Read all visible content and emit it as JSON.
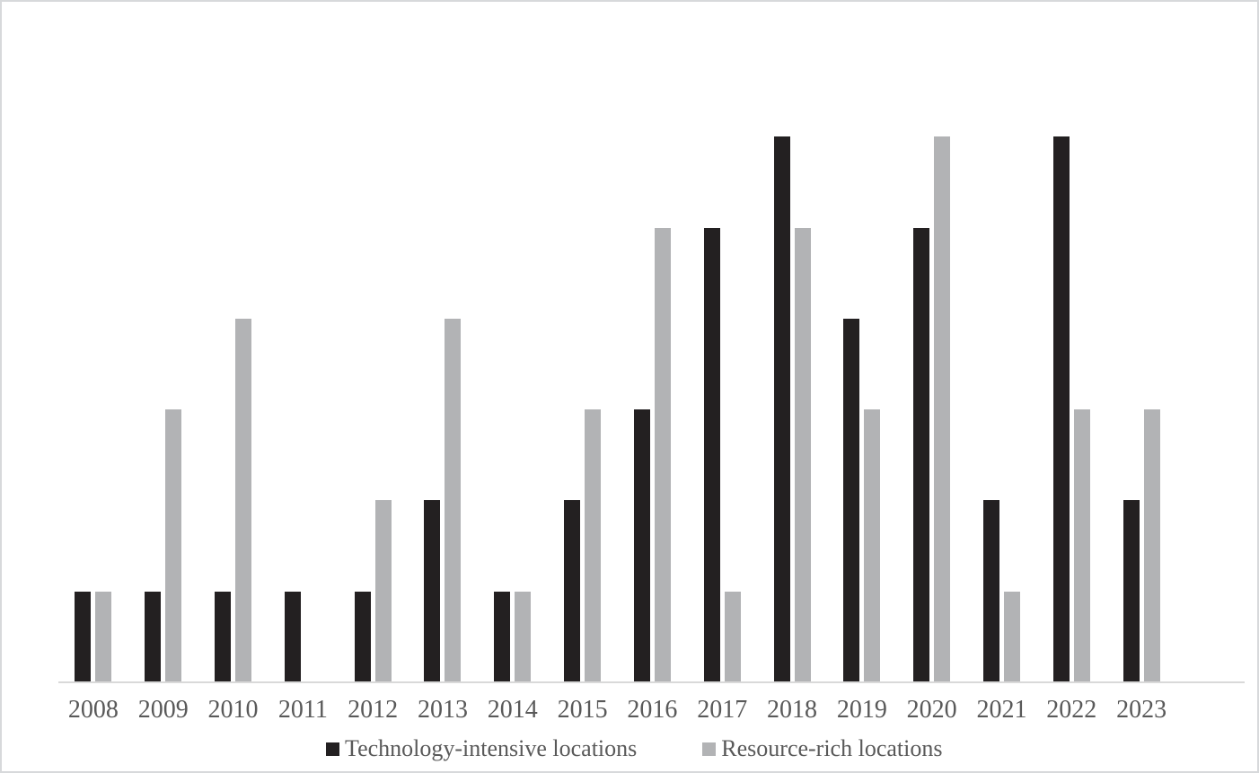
{
  "figure": {
    "background": "#ffffff",
    "border_color": "#d7d9db"
  },
  "chart_data": {
    "type": "bar",
    "title": "",
    "xlabel": "",
    "ylabel": "",
    "categories": [
      "2008",
      "2009",
      "2010",
      "2011",
      "2012",
      "2013",
      "2014",
      "2015",
      "2016",
      "2017",
      "2018",
      "2019",
      "2020",
      "2021",
      "2022",
      "2023"
    ],
    "series": [
      {
        "name": "Technology-intensive locations",
        "color": "#232021",
        "values": [
          1,
          1,
          1,
          1,
          1,
          2,
          1,
          2,
          3,
          5,
          6,
          4,
          5,
          2,
          6,
          2
        ]
      },
      {
        "name": "Resource-rich locations",
        "color": "#b2b3b5",
        "values": [
          1,
          3,
          4,
          0,
          2,
          4,
          1,
          3,
          5,
          1,
          5,
          3,
          6,
          1,
          3,
          3
        ]
      }
    ],
    "ylim": [
      0,
      6
    ],
    "y_axis_visible": false,
    "gridlines": false,
    "legend_position": "bottom",
    "axis_line_color": "#d9d9d9",
    "tick_label_color": "#595959",
    "legend_text_color": "#595959"
  }
}
